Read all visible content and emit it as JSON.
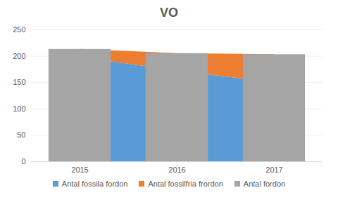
{
  "chart_data": {
    "type": "bar",
    "title": "VO",
    "categories": [
      "2015",
      "2016",
      "2017"
    ],
    "series": [
      {
        "name": "Antal fossila fordon",
        "type": "area",
        "color": "#5b9bd5",
        "values": [
          198,
          172,
          150
        ]
      },
      {
        "name": "Antal fossilfria frordon",
        "type": "area",
        "color": "#ed7d31",
        "values": [
          15,
          33,
          53
        ]
      },
      {
        "name": "Antal fordon",
        "type": "bar",
        "color": "#a5a5a5",
        "values": [
          213,
          205,
          203
        ]
      }
    ],
    "stacked": true,
    "ylim": [
      0,
      250
    ],
    "yticks": [
      0,
      50,
      100,
      150,
      200,
      250
    ],
    "grid": true
  }
}
